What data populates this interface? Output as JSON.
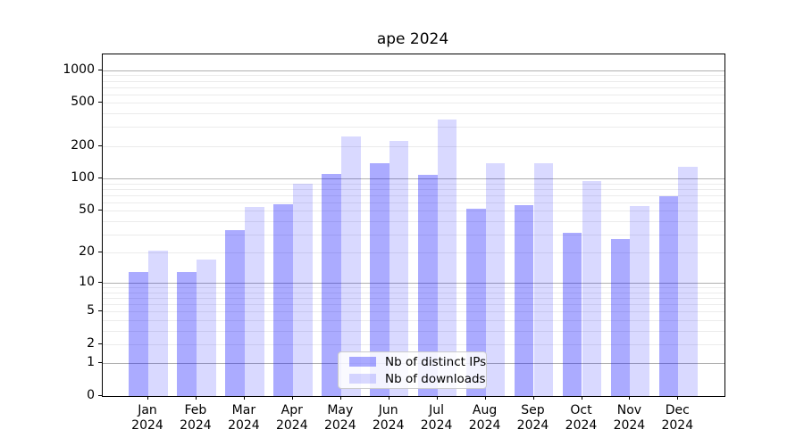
{
  "figure": {
    "title": "ape 2024"
  },
  "chart_data": {
    "type": "bar",
    "title": "ape 2024",
    "subtitle": "",
    "categories": [
      "Jan",
      "Feb",
      "Mar",
      "Apr",
      "May",
      "Jun",
      "Jul",
      "Aug",
      "Sep",
      "Oct",
      "Nov",
      "Dec"
    ],
    "category_sublabel": "2024",
    "series": [
      {
        "key": "distinct-ips",
        "name": "Nb of distinct IPs",
        "color": "rgba(0,0,255,0.33)",
        "values": [
          13,
          13,
          33,
          57,
          110,
          138,
          109,
          52,
          56,
          31,
          27,
          68
        ]
      },
      {
        "key": "downloads",
        "name": "Nb of downloads",
        "color": "rgba(0,0,255,0.15)",
        "values": [
          21,
          17,
          54,
          89,
          244,
          221,
          355,
          139,
          139,
          94,
          55,
          128
        ]
      }
    ],
    "xlabel": "",
    "ylabel": "",
    "y_axis": {
      "scale": "log10(value+1)",
      "ticks": [
        0,
        1,
        2,
        5,
        10,
        20,
        50,
        100,
        200,
        500,
        1000
      ],
      "major_gridlines": [
        1,
        10,
        100,
        1000
      ],
      "minor_gridlines": [
        2,
        3,
        4,
        5,
        6,
        7,
        8,
        9,
        20,
        30,
        40,
        50,
        60,
        70,
        80,
        90,
        200,
        300,
        400,
        500,
        600,
        700,
        800,
        900
      ],
      "ylim": [
        0,
        1400
      ],
      "grid": true
    },
    "legend": {
      "location": "lower center",
      "entries": [
        "Nb of distinct IPs",
        "Nb of downloads"
      ]
    }
  }
}
